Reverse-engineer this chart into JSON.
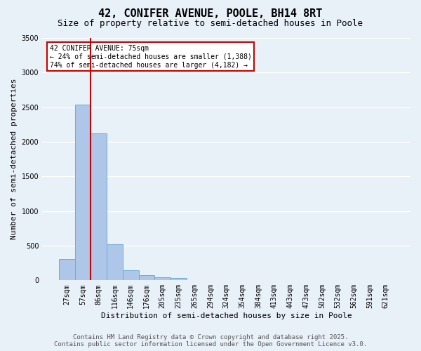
{
  "title": "42, CONIFER AVENUE, POOLE, BH14 8RT",
  "subtitle": "Size of property relative to semi-detached houses in Poole",
  "xlabel": "Distribution of semi-detached houses by size in Poole",
  "ylabel": "Number of semi-detached properties",
  "categories": [
    "27sqm",
    "57sqm",
    "86sqm",
    "116sqm",
    "146sqm",
    "176sqm",
    "205sqm",
    "235sqm",
    "265sqm",
    "294sqm",
    "324sqm",
    "354sqm",
    "384sqm",
    "413sqm",
    "443sqm",
    "473sqm",
    "502sqm",
    "532sqm",
    "562sqm",
    "591sqm",
    "621sqm"
  ],
  "values": [
    310,
    2540,
    2120,
    520,
    150,
    75,
    40,
    30,
    0,
    0,
    0,
    0,
    0,
    0,
    0,
    0,
    0,
    0,
    0,
    0,
    0
  ],
  "bar_color": "#aec6e8",
  "bar_edge_color": "#6aaed6",
  "vline_color": "#cc0000",
  "annotation_text": "42 CONIFER AVENUE: 75sqm\n← 24% of semi-detached houses are smaller (1,388)\n74% of semi-detached houses are larger (4,182) →",
  "annotation_box_color": "#ffffff",
  "annotation_border_color": "#cc0000",
  "ylim": [
    0,
    3500
  ],
  "yticks": [
    0,
    500,
    1000,
    1500,
    2000,
    2500,
    3000,
    3500
  ],
  "footer_line1": "Contains HM Land Registry data © Crown copyright and database right 2025.",
  "footer_line2": "Contains public sector information licensed under the Open Government Licence v3.0.",
  "bg_color": "#e8f0f8",
  "plot_bg_color": "#e8f0f8",
  "grid_color": "#ffffff",
  "title_fontsize": 11,
  "subtitle_fontsize": 9,
  "label_fontsize": 8,
  "tick_fontsize": 7,
  "footer_fontsize": 6.5,
  "annot_fontsize": 7
}
